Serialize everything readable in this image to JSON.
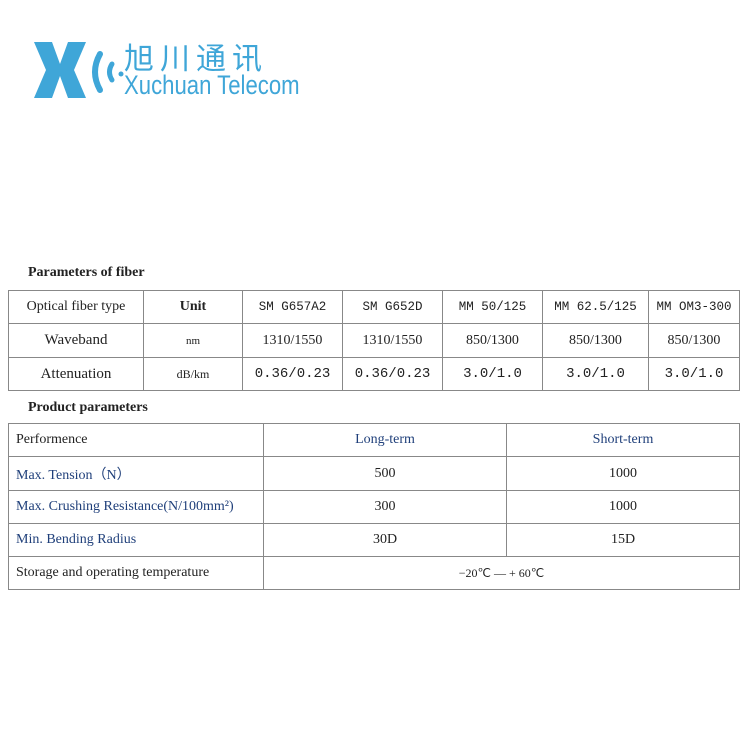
{
  "logo": {
    "cn": "旭川通讯",
    "en": "Xuchuan Telecom",
    "color": "#3fa6d8"
  },
  "fiber": {
    "title": "Parameters of fiber",
    "header": [
      "Optical fiber type",
      "Unit",
      "SM G657A2",
      "SM G652D",
      "MM 50/125",
      "MM 62.5/125",
      "MM OM3-300"
    ],
    "rows": [
      [
        "Waveband",
        "nm",
        "1310/1550",
        "1310/1550",
        "850/1300",
        "850/1300",
        "850/1300"
      ],
      [
        "Attenuation",
        "dB/km",
        "0.36/0.23",
        "0.36/0.23",
        "3.0/1.0",
        "3.0/1.0",
        "3.0/1.0"
      ]
    ]
  },
  "product": {
    "title": "Product parameters",
    "header": [
      "Performence",
      "Long-term",
      "Short-term"
    ],
    "rows": [
      [
        "Max. Tension（N）",
        "500",
        "1000"
      ],
      [
        "Max. Crushing Resistance(N/100mm²)",
        "300",
        "1000"
      ],
      [
        "Min. Bending Radius",
        "30D",
        "15D"
      ]
    ],
    "temp": [
      "Storage and operating temperature",
      "−20℃ — + 60℃"
    ]
  }
}
